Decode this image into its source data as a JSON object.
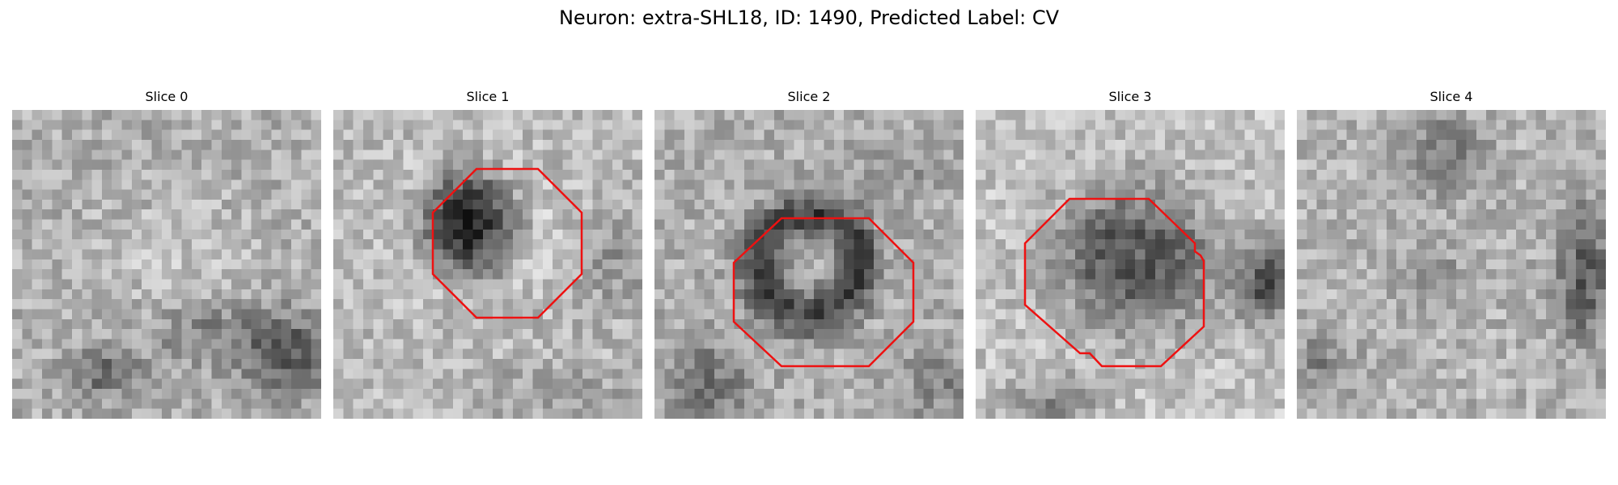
{
  "figure": {
    "title": "Neuron: extra-SHL18, ID: 1490, Predicted Label: CV"
  },
  "slices": [
    {
      "title": "Slice 0",
      "has_outline": false
    },
    {
      "title": "Slice 1",
      "has_outline": true
    },
    {
      "title": "Slice 2",
      "has_outline": true
    },
    {
      "title": "Slice 3",
      "has_outline": true
    },
    {
      "title": "Slice 4",
      "has_outline": false
    }
  ],
  "colors": {
    "outline": "#ee1111",
    "background": "#ffffff"
  }
}
